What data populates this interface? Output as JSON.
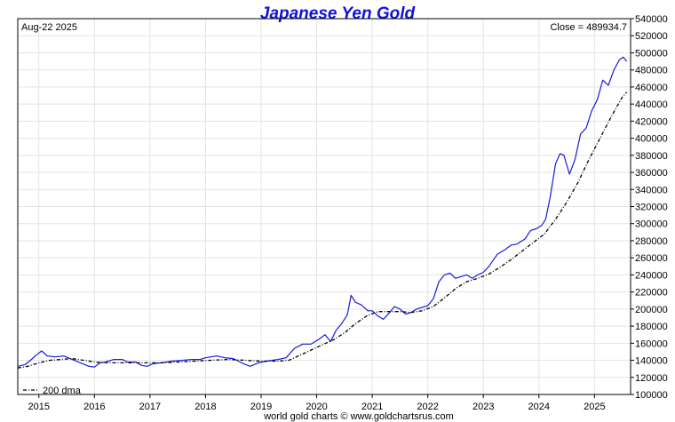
{
  "chart_data": {
    "type": "line",
    "title": "Japanese Yen Gold",
    "date_label": "Aug-22  2025",
    "close_label": "Close = 489934.7",
    "credit": "world gold charts © www.goldchartsrus.com",
    "x_range": [
      2014.62,
      2025.65
    ],
    "ylim": [
      100000,
      540000
    ],
    "y_ticks": [
      100000,
      120000,
      140000,
      160000,
      180000,
      200000,
      220000,
      240000,
      260000,
      280000,
      300000,
      320000,
      340000,
      360000,
      380000,
      400000,
      420000,
      440000,
      460000,
      480000,
      500000,
      520000,
      540000
    ],
    "x_ticks": [
      {
        "label": "2015",
        "x": 2015.0
      },
      {
        "label": "2016",
        "x": 2016.0
      },
      {
        "label": "2017",
        "x": 2017.0
      },
      {
        "label": "2018",
        "x": 2018.0
      },
      {
        "label": "2019",
        "x": 2019.0
      },
      {
        "label": "2020",
        "x": 2020.0
      },
      {
        "label": "2021",
        "x": 2021.0
      },
      {
        "label": "2022",
        "x": 2022.0
      },
      {
        "label": "2023",
        "x": 2023.0
      },
      {
        "label": "2024",
        "x": 2024.0
      },
      {
        "label": "2025",
        "x": 2025.0
      }
    ],
    "grid": true,
    "legend_position": "bottom-left",
    "series": [
      {
        "name": "",
        "color": "#1a1adc",
        "style": "solid",
        "points": [
          [
            2014.62,
            133000
          ],
          [
            2014.75,
            135000
          ],
          [
            2014.85,
            140000
          ],
          [
            2014.95,
            146000
          ],
          [
            2015.05,
            151000
          ],
          [
            2015.15,
            145000
          ],
          [
            2015.3,
            144000
          ],
          [
            2015.45,
            145000
          ],
          [
            2015.6,
            141000
          ],
          [
            2015.75,
            137000
          ],
          [
            2015.9,
            133000
          ],
          [
            2016.0,
            132000
          ],
          [
            2016.1,
            137000
          ],
          [
            2016.2,
            138000
          ],
          [
            2016.35,
            141000
          ],
          [
            2016.5,
            141000
          ],
          [
            2016.6,
            138000
          ],
          [
            2016.75,
            138000
          ],
          [
            2016.85,
            134000
          ],
          [
            2016.95,
            133000
          ],
          [
            2017.05,
            136000
          ],
          [
            2017.2,
            137000
          ],
          [
            2017.4,
            139000
          ],
          [
            2017.6,
            140000
          ],
          [
            2017.75,
            141000
          ],
          [
            2017.9,
            141000
          ],
          [
            2018.0,
            143000
          ],
          [
            2018.2,
            145000
          ],
          [
            2018.35,
            143000
          ],
          [
            2018.5,
            142000
          ],
          [
            2018.65,
            137000
          ],
          [
            2018.8,
            133000
          ],
          [
            2018.95,
            137000
          ],
          [
            2019.1,
            139000
          ],
          [
            2019.3,
            141000
          ],
          [
            2019.45,
            143000
          ],
          [
            2019.6,
            154000
          ],
          [
            2019.75,
            159000
          ],
          [
            2019.9,
            159000
          ],
          [
            2020.05,
            165000
          ],
          [
            2020.15,
            170000
          ],
          [
            2020.25,
            162000
          ],
          [
            2020.35,
            175000
          ],
          [
            2020.45,
            183000
          ],
          [
            2020.55,
            193000
          ],
          [
            2020.62,
            216000
          ],
          [
            2020.7,
            208000
          ],
          [
            2020.8,
            205000
          ],
          [
            2020.92,
            198000
          ],
          [
            2021.0,
            198000
          ],
          [
            2021.1,
            192000
          ],
          [
            2021.2,
            188000
          ],
          [
            2021.3,
            195000
          ],
          [
            2021.4,
            203000
          ],
          [
            2021.5,
            200000
          ],
          [
            2021.6,
            194000
          ],
          [
            2021.7,
            196000
          ],
          [
            2021.8,
            200000
          ],
          [
            2021.9,
            202000
          ],
          [
            2022.0,
            204000
          ],
          [
            2022.1,
            212000
          ],
          [
            2022.2,
            232000
          ],
          [
            2022.3,
            240000
          ],
          [
            2022.4,
            242000
          ],
          [
            2022.5,
            236000
          ],
          [
            2022.6,
            238000
          ],
          [
            2022.7,
            240000
          ],
          [
            2022.8,
            236000
          ],
          [
            2022.9,
            240000
          ],
          [
            2023.0,
            243000
          ],
          [
            2023.1,
            250000
          ],
          [
            2023.25,
            264000
          ],
          [
            2023.4,
            270000
          ],
          [
            2023.5,
            275000
          ],
          [
            2023.6,
            276000
          ],
          [
            2023.75,
            282000
          ],
          [
            2023.85,
            292000
          ],
          [
            2023.95,
            294000
          ],
          [
            2024.05,
            298000
          ],
          [
            2024.12,
            305000
          ],
          [
            2024.2,
            330000
          ],
          [
            2024.3,
            370000
          ],
          [
            2024.38,
            382000
          ],
          [
            2024.45,
            380000
          ],
          [
            2024.55,
            358000
          ],
          [
            2024.65,
            375000
          ],
          [
            2024.75,
            405000
          ],
          [
            2024.85,
            412000
          ],
          [
            2024.95,
            432000
          ],
          [
            2025.05,
            445000
          ],
          [
            2025.15,
            468000
          ],
          [
            2025.25,
            462000
          ],
          [
            2025.35,
            480000
          ],
          [
            2025.45,
            492000
          ],
          [
            2025.52,
            495000
          ],
          [
            2025.58,
            489900
          ]
        ]
      },
      {
        "name": "200 dma",
        "color": "#000000",
        "style": "dashdot",
        "points": [
          [
            2014.62,
            131000
          ],
          [
            2014.8,
            133000
          ],
          [
            2015.0,
            137000
          ],
          [
            2015.2,
            140000
          ],
          [
            2015.4,
            141000
          ],
          [
            2015.6,
            142000
          ],
          [
            2015.8,
            140000
          ],
          [
            2016.0,
            138000
          ],
          [
            2016.3,
            137000
          ],
          [
            2016.6,
            137000
          ],
          [
            2016.9,
            137000
          ],
          [
            2017.2,
            137000
          ],
          [
            2017.5,
            138000
          ],
          [
            2017.8,
            139000
          ],
          [
            2018.1,
            140000
          ],
          [
            2018.4,
            141000
          ],
          [
            2018.7,
            140000
          ],
          [
            2019.0,
            139000
          ],
          [
            2019.3,
            139000
          ],
          [
            2019.5,
            140000
          ],
          [
            2019.7,
            146000
          ],
          [
            2019.9,
            152000
          ],
          [
            2020.1,
            158000
          ],
          [
            2020.3,
            164000
          ],
          [
            2020.5,
            172000
          ],
          [
            2020.7,
            183000
          ],
          [
            2020.9,
            192000
          ],
          [
            2021.1,
            197000
          ],
          [
            2021.3,
            197000
          ],
          [
            2021.5,
            197000
          ],
          [
            2021.7,
            196000
          ],
          [
            2021.9,
            198000
          ],
          [
            2022.1,
            203000
          ],
          [
            2022.3,
            213000
          ],
          [
            2022.5,
            224000
          ],
          [
            2022.7,
            232000
          ],
          [
            2022.9,
            236000
          ],
          [
            2023.1,
            241000
          ],
          [
            2023.3,
            249000
          ],
          [
            2023.5,
            258000
          ],
          [
            2023.7,
            268000
          ],
          [
            2023.9,
            278000
          ],
          [
            2024.1,
            288000
          ],
          [
            2024.3,
            305000
          ],
          [
            2024.5,
            325000
          ],
          [
            2024.7,
            348000
          ],
          [
            2024.9,
            375000
          ],
          [
            2025.1,
            400000
          ],
          [
            2025.3,
            425000
          ],
          [
            2025.5,
            448000
          ],
          [
            2025.58,
            454000
          ]
        ]
      }
    ]
  }
}
